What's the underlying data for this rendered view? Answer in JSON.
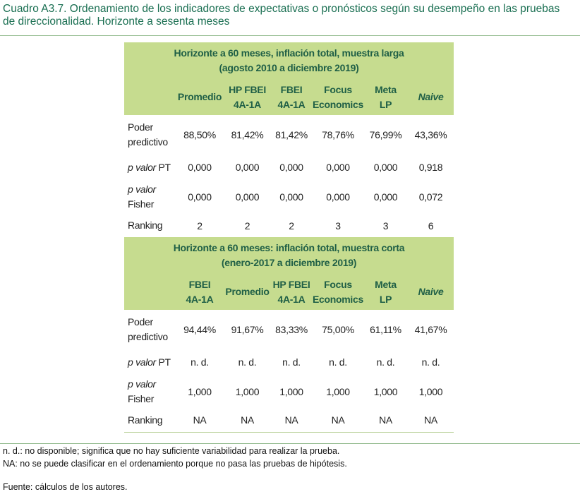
{
  "title": "Cuadro A3.7. Ordenamiento de los indicadores de expectativas o pronósticos según su desempeño en las pruebas de direccionalidad. Horizonte a sesenta meses",
  "sections": [
    {
      "title": [
        "Horizonte a 60 meses, inflación total, muestra larga",
        "(agosto 2010 a diciembre 2019)"
      ],
      "columns": [
        [
          "Promedio"
        ],
        [
          "HP FBEI",
          "4A-1A"
        ],
        [
          "FBEI",
          "4A-1A"
        ],
        [
          "Focus",
          "Economics"
        ],
        [
          "Meta",
          "LP"
        ],
        [
          "Naive"
        ]
      ],
      "rows": [
        {
          "label": "Poder predictivo",
          "values": [
            "88,50%",
            "81,42%",
            "81,42%",
            "78,76%",
            "76,99%",
            "43,36%"
          ]
        },
        {
          "label_italic": "p valor",
          "label": "PT",
          "values": [
            "0,000",
            "0,000",
            "0,000",
            "0,000",
            "0,000",
            "0,918"
          ]
        },
        {
          "label_italic": "p valor",
          "label": "Fisher",
          "values": [
            "0,000",
            "0,000",
            "0,000",
            "0,000",
            "0,000",
            "0,072"
          ]
        },
        {
          "label": "Ranking",
          "values": [
            "2",
            "2",
            "2",
            "3",
            "3",
            "6"
          ]
        }
      ]
    },
    {
      "title": [
        "Horizonte a 60 meses: inflación total, muestra corta",
        "(enero-2017 a diciembre 2019)"
      ],
      "columns": [
        [
          "FBEI",
          "4A-1A"
        ],
        [
          "Promedio"
        ],
        [
          "HP FBEI",
          "4A-1A"
        ],
        [
          "Focus",
          "Economics"
        ],
        [
          "Meta",
          "LP"
        ],
        [
          "Naive"
        ]
      ],
      "rows": [
        {
          "label": "Poder predictivo",
          "values": [
            "94,44%",
            "91,67%",
            "83,33%",
            "75,00%",
            "61,11%",
            "41,67%"
          ]
        },
        {
          "label_italic": "p valor",
          "label": "PT",
          "values": [
            "n. d.",
            "n. d.",
            "n. d.",
            "n. d.",
            "n. d.",
            "n. d."
          ]
        },
        {
          "label_italic": "p valor",
          "label": "Fisher",
          "values": [
            "1,000",
            "1,000",
            "1,000",
            "1,000",
            "1,000",
            "1,000"
          ]
        },
        {
          "label": "Ranking",
          "values": [
            "NA",
            "NA",
            "NA",
            "NA",
            "NA",
            "NA"
          ]
        }
      ]
    }
  ],
  "notes": [
    "n. d.: no disponible; significa que no hay suficiente variabilidad para realizar la prueba.",
    "NA: no se puede clasificar en el ordenamiento porque no pasa las pruebas de hipótesis."
  ],
  "source": "Fuente: cálculos de los autores."
}
